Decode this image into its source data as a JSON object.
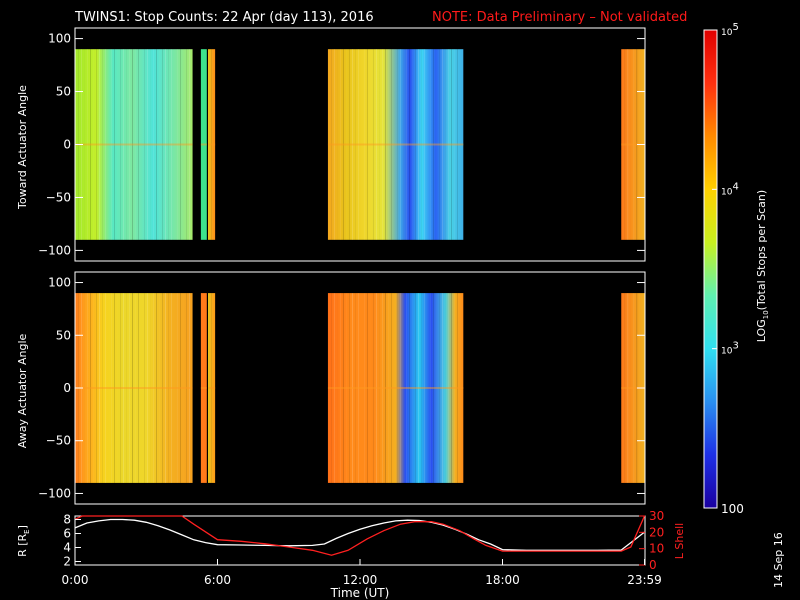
{
  "title": {
    "main": "TWINS1: Stop Counts: 22 Apr (day 113), 2016",
    "note": "NOTE: Data Preliminary – Not validated"
  },
  "colors": {
    "background": "#000000",
    "note_red": "#ff1a1a",
    "r_line": "#ffffff",
    "lshell_line": "#ff2020"
  },
  "chart_data": [
    {
      "type": "heatmap",
      "name": "toward-panel",
      "ylabel": "Toward Actuator Angle",
      "yticks": [
        "100",
        "50",
        "0",
        "−50",
        "−100"
      ],
      "ylim": [
        -110,
        110
      ],
      "data_ylim": [
        -90,
        90
      ],
      "xlim": [
        0,
        24
      ],
      "colorscale": "log",
      "segments": [
        {
          "start": 0.0,
          "end": 4.95,
          "profile": [
            [
              0,
              "#9fe82a"
            ],
            [
              0.9,
              "#c4ef2a"
            ],
            [
              1.6,
              "#58e8c4"
            ],
            [
              2.4,
              "#7ee8a0"
            ],
            [
              3.3,
              "#4fe3d9"
            ],
            [
              4.2,
              "#7ae7a4"
            ],
            [
              4.95,
              "#a8ea6a"
            ]
          ]
        },
        {
          "start": 5.3,
          "end": 5.55,
          "profile": [
            [
              5.3,
              "#3de38c"
            ],
            [
              5.55,
              "#3de38c"
            ]
          ]
        },
        {
          "start": 5.6,
          "end": 5.9,
          "profile": [
            [
              5.6,
              "#e9c41c"
            ],
            [
              5.9,
              "#ff8c1a"
            ]
          ]
        },
        {
          "start": 10.65,
          "end": 16.35,
          "profile": [
            [
              10.65,
              "#f4a81e"
            ],
            [
              11.4,
              "#e9c41c"
            ],
            [
              12.2,
              "#f0d62a"
            ],
            [
              13.0,
              "#e4e43a"
            ],
            [
              13.7,
              "#3fa6e8"
            ],
            [
              14.1,
              "#2a4ff0"
            ],
            [
              14.6,
              "#3fd8f4"
            ],
            [
              15.2,
              "#2a62f2"
            ],
            [
              15.8,
              "#4ad3e6"
            ],
            [
              16.35,
              "#3fb0e8"
            ]
          ]
        },
        {
          "start": 23.0,
          "end": 23.98,
          "profile": [
            [
              23.0,
              "#ff7a1a"
            ],
            [
              23.98,
              "#f0b020"
            ]
          ]
        }
      ]
    },
    {
      "type": "heatmap",
      "name": "away-panel",
      "ylabel": "Away Actuator Angle",
      "yticks": [
        "100",
        "50",
        "0",
        "−50",
        "−100"
      ],
      "ylim": [
        -110,
        110
      ],
      "data_ylim": [
        -90,
        90
      ],
      "xlim": [
        0,
        24
      ],
      "colorscale": "log",
      "segments": [
        {
          "start": 0.0,
          "end": 4.95,
          "profile": [
            [
              0,
              "#ff7a1a"
            ],
            [
              0.4,
              "#ffa01c"
            ],
            [
              1.2,
              "#f7d21e"
            ],
            [
              2.0,
              "#ecd72a"
            ],
            [
              3.0,
              "#f0d62a"
            ],
            [
              4.0,
              "#f4b020"
            ],
            [
              4.95,
              "#f6a01f"
            ]
          ]
        },
        {
          "start": 5.3,
          "end": 5.55,
          "profile": [
            [
              5.3,
              "#ff7a1a"
            ],
            [
              5.55,
              "#ff7a1a"
            ]
          ]
        },
        {
          "start": 5.6,
          "end": 5.9,
          "profile": [
            [
              5.6,
              "#e9c41c"
            ],
            [
              5.9,
              "#ff9a1a"
            ]
          ]
        },
        {
          "start": 10.65,
          "end": 16.35,
          "profile": [
            [
              10.65,
              "#ff7018"
            ],
            [
              11.6,
              "#ff8a1a"
            ],
            [
              12.6,
              "#ff8a1a"
            ],
            [
              13.5,
              "#f4b020"
            ],
            [
              13.9,
              "#2a4ff0"
            ],
            [
              14.5,
              "#2ac8f0"
            ],
            [
              15.0,
              "#2a4ff0"
            ],
            [
              15.6,
              "#4ad0e0"
            ],
            [
              16.0,
              "#f4b020"
            ],
            [
              16.35,
              "#ff8a1a"
            ]
          ]
        },
        {
          "start": 23.0,
          "end": 23.98,
          "profile": [
            [
              23.0,
              "#ff7a1a"
            ],
            [
              23.98,
              "#f0b020"
            ]
          ]
        }
      ]
    },
    {
      "type": "line",
      "name": "orbit-panel",
      "xlabel": "Time (UT)",
      "xticks": [
        "0:00",
        "6:00",
        "12:00",
        "18:00",
        "23:59"
      ],
      "xtick_values": [
        0,
        6,
        12,
        18,
        23.98
      ],
      "ylabel_left": "R [R",
      "ylabel_left_sub": "E",
      "ylabel_left_end": "]",
      "ylabel_right": "L Shell",
      "yticks_left": [
        "8",
        "6",
        "4",
        "2"
      ],
      "yticks_right": [
        "30",
        "20",
        "10",
        "0"
      ],
      "ylim_left": [
        1.5,
        8.5
      ],
      "ylim_right": [
        0,
        30
      ],
      "series": [
        {
          "axis": "left",
          "x": [
            0,
            0.5,
            1,
            1.5,
            2,
            2.5,
            3,
            3.5,
            4,
            4.5,
            5,
            5.5,
            6,
            7,
            8,
            9,
            10,
            10.5,
            11,
            11.5,
            12,
            12.5,
            13,
            13.5,
            14,
            14.5,
            15,
            15.5,
            16,
            16.5,
            17,
            17.5,
            18,
            19,
            20,
            21,
            22,
            23,
            23.98
          ],
          "y": [
            6.8,
            7.5,
            7.8,
            8.0,
            8.0,
            7.9,
            7.6,
            7.1,
            6.5,
            5.8,
            5.1,
            4.7,
            4.4,
            4.35,
            4.3,
            4.25,
            4.3,
            4.5,
            5.3,
            6.0,
            6.6,
            7.1,
            7.5,
            7.8,
            7.9,
            7.85,
            7.6,
            7.2,
            6.6,
            5.9,
            5.1,
            4.5,
            3.7,
            3.6,
            3.6,
            3.6,
            3.6,
            3.65,
            6.2
          ]
        },
        {
          "axis": "right",
          "x": [
            0,
            0.3,
            4.5,
            5.0,
            6,
            7,
            8,
            9,
            10,
            10.8,
            11.5,
            12.3,
            13,
            13.7,
            14.3,
            15,
            15.5,
            16.2,
            16.8,
            17.3,
            18,
            19,
            20,
            21,
            22,
            23,
            23.4,
            23.98
          ],
          "y": [
            28,
            30,
            30,
            25,
            15.5,
            14.5,
            13,
            11,
            9,
            6,
            9,
            16,
            21,
            25,
            26.5,
            26.5,
            25,
            21,
            16,
            12,
            8.5,
            8.5,
            8.5,
            8.5,
            8.5,
            8.5,
            11,
            30
          ]
        }
      ]
    }
  ],
  "colorbar": {
    "label_prefix": "LOG",
    "label_sub": "10",
    "label_suffix": "(Total Stops per Scan)",
    "ticks": [
      {
        "base": "10",
        "exp": "5",
        "plain": ""
      },
      {
        "base": "10",
        "exp": "4",
        "plain": ""
      },
      {
        "base": "10",
        "exp": "3",
        "plain": ""
      },
      {
        "base": "",
        "exp": "",
        "plain": "100"
      }
    ],
    "tick_values": [
      5,
      4,
      3,
      2
    ],
    "range": [
      2,
      5
    ],
    "stops": [
      "#1a00a0",
      "#1e30e6",
      "#2a8ff0",
      "#30e0f0",
      "#5ff0b0",
      "#c8f020",
      "#ffd000",
      "#ff8a00",
      "#ff3010",
      "#e00000"
    ]
  },
  "datestamp": "14 Sep 16"
}
